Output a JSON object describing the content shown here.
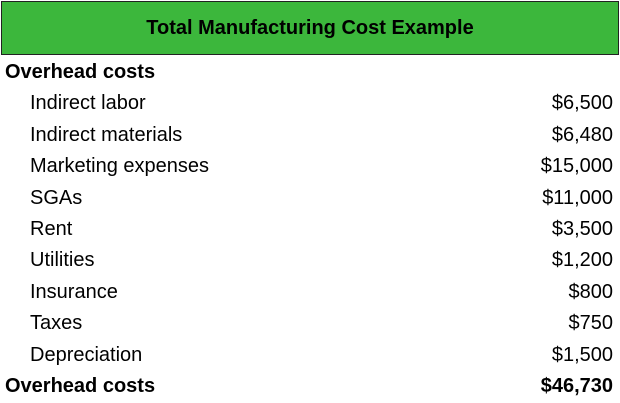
{
  "header": {
    "title": "Total Manufacturing Cost Example"
  },
  "table": {
    "section": "Overhead costs",
    "rows": [
      [
        "Indirect labor",
        "$6,500"
      ],
      [
        "Indirect materials",
        "$6,480"
      ],
      [
        "Marketing expenses",
        "$15,000"
      ],
      [
        "SGAs",
        "$11,000"
      ],
      [
        "Rent",
        "$3,500"
      ],
      [
        "Utilities",
        "$1,200"
      ],
      [
        "Insurance",
        "$800"
      ],
      [
        "Taxes",
        "$750"
      ],
      [
        "Depreciation",
        "$1,500"
      ]
    ],
    "total": [
      "Overhead costs",
      "$46,730"
    ]
  }
}
